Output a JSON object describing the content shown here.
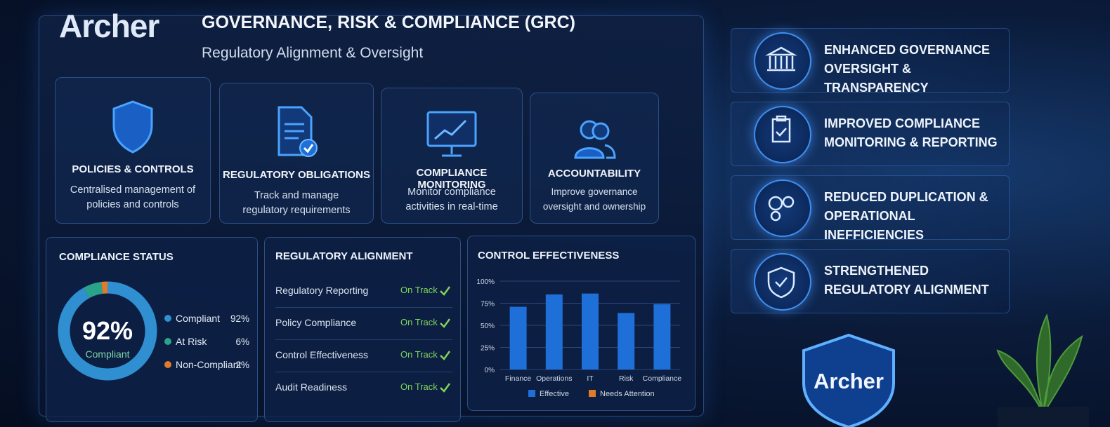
{
  "logo": "Archer",
  "header": {
    "title": "GOVERNANCE, RISK & COMPLIANCE (GRC)",
    "subtitle": "Regulatory Alignment & Oversight"
  },
  "cards": [
    {
      "title": "POLICIES & CONTROLS",
      "text": "Centralised management of policies and controls"
    },
    {
      "title": "REGULATORY OBLIGATIONS",
      "text": "Track and manage regulatory requirements"
    },
    {
      "title": "COMPLIANCE MONITORING",
      "text": "Monitor compliance activities in real-time"
    },
    {
      "title": "ACCOUNTABILITY",
      "text": "Improve governance oversight and ownership"
    }
  ],
  "regulatory_alignment": {
    "title": "REGULATORY ALIGNMENT",
    "rows": [
      {
        "item": "Regulatory Reporting",
        "status": "On Track"
      },
      {
        "item": "Policy Compliance",
        "status": "On Track"
      },
      {
        "item": "Control Effectiveness",
        "status": "On Track"
      },
      {
        "item": "Audit Readiness",
        "status": "On Track"
      }
    ]
  },
  "chart_data": [
    {
      "type": "pie",
      "title": "COMPLIANCE STATUS",
      "center_text": "92%",
      "center_caption": "Compliant",
      "categories": [
        "Compliant",
        "At Risk",
        "Non-Compliant"
      ],
      "values": [
        92,
        6,
        2
      ],
      "value_labels": [
        "92%",
        "6%",
        "2%"
      ],
      "colors": [
        "#2f8fd0",
        "#2aa38a",
        "#e07b2c"
      ]
    },
    {
      "type": "bar",
      "title": "CONTROL EFFECTIVENESS",
      "categories": [
        "Finance",
        "Operations",
        "IT",
        "Risk",
        "Compliance"
      ],
      "series": [
        {
          "name": "Effective",
          "color": "#1f6fd8",
          "values": [
            71,
            85,
            86,
            64,
            74
          ]
        },
        {
          "name": "Needs Attention",
          "color": "#e07b2c",
          "values": [
            null,
            null,
            null,
            null,
            null
          ]
        }
      ],
      "ylim": [
        0,
        100
      ],
      "yticks": [
        {
          "value": 0,
          "label": "0%"
        },
        {
          "value": 25,
          "label": "25%"
        },
        {
          "value": 50,
          "label": "50%"
        },
        {
          "value": 75,
          "label": "75%"
        },
        {
          "value": 100,
          "label": "100%"
        }
      ],
      "grid": true
    }
  ],
  "benefits": [
    "ENHANCED GOVERNANCE OVERSIGHT & TRANSPARENCY",
    "IMPROVED COMPLIANCE MONITORING & REPORTING",
    "REDUCED DUPLICATION & OPERATIONAL INEFFICIENCIES",
    "STRENGTHENED REGULATORY ALIGNMENT"
  ],
  "badge": "Archer"
}
